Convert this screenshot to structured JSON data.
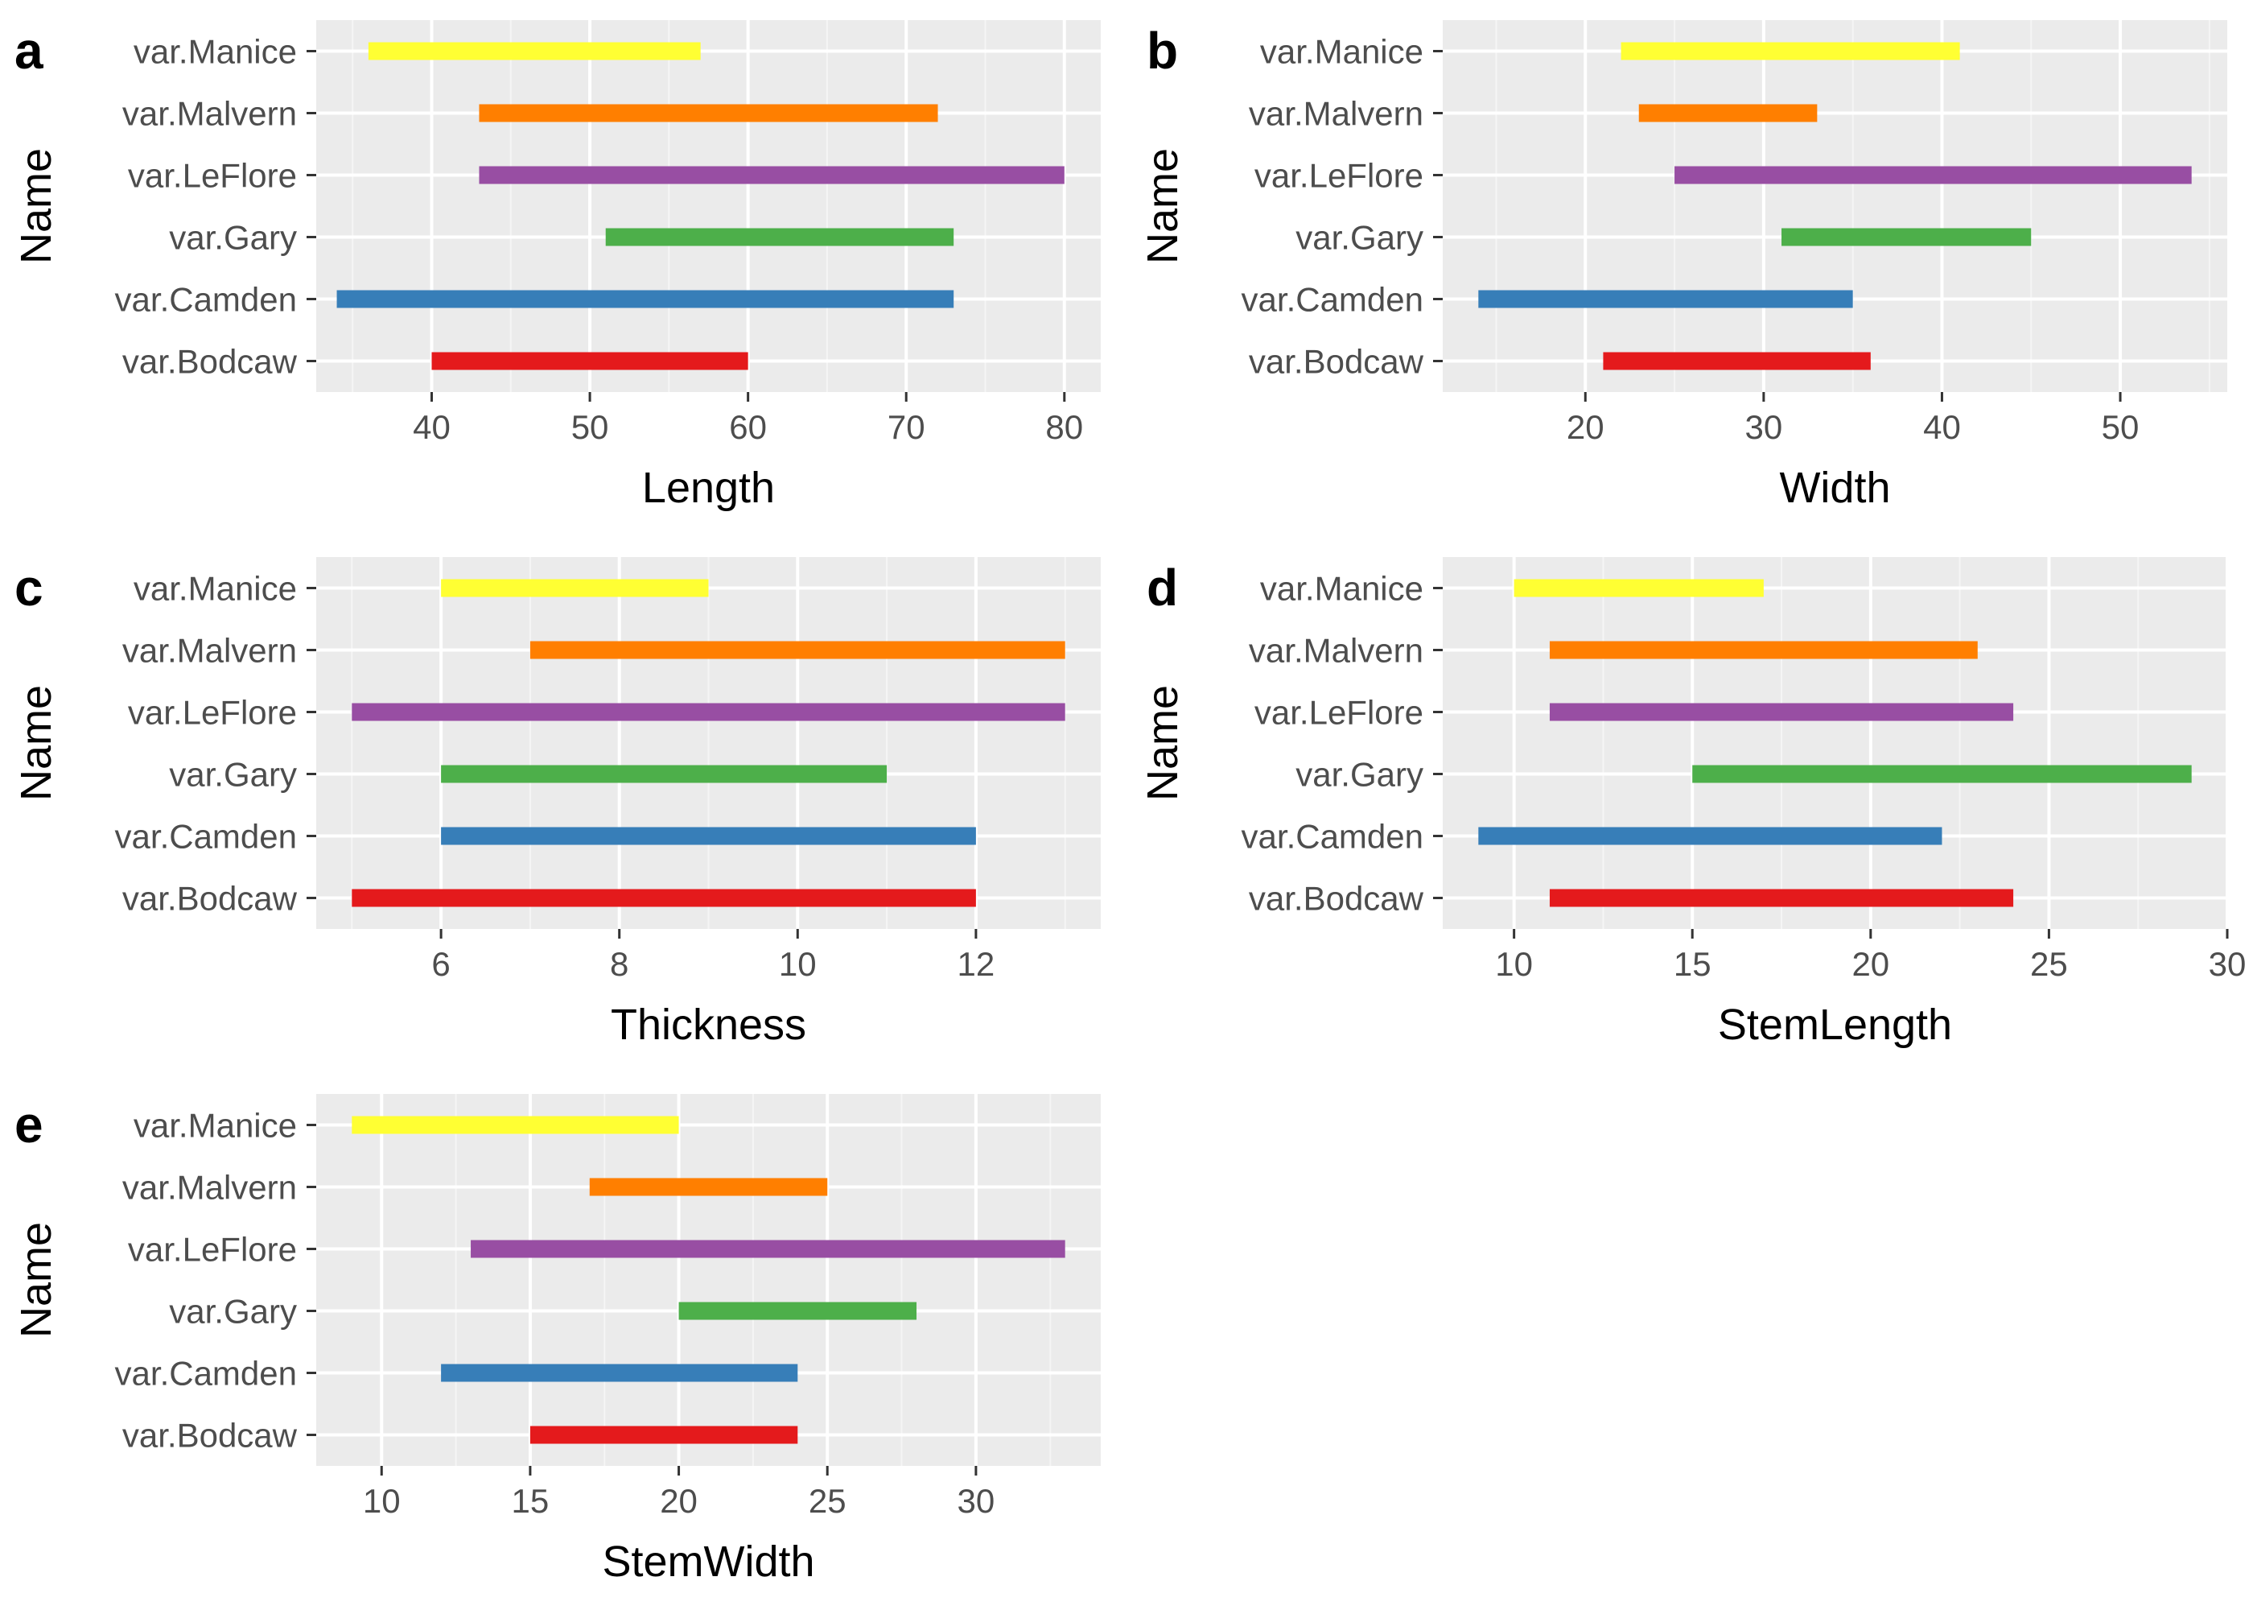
{
  "chart_data": [
    {
      "type": "bar",
      "panel_label": "a",
      "xlabel": "Length",
      "ylabel": "Name",
      "categories": [
        "var.Manice",
        "var.Malvern",
        "var.LeFlore",
        "var.Gary",
        "var.Camden",
        "var.Bodcaw"
      ],
      "ranges": [
        [
          36,
          57
        ],
        [
          43,
          72
        ],
        [
          43,
          80
        ],
        [
          51,
          73
        ],
        [
          34,
          73
        ],
        [
          40,
          60
        ]
      ],
      "colors": [
        "#ffff33",
        "#ff7f00",
        "#984ea3",
        "#4daf4a",
        "#377eb8",
        "#e41a1c"
      ],
      "xlim": [
        32.7,
        82.3
      ],
      "xticks": [
        40,
        50,
        60,
        70,
        80
      ],
      "xtick_labels": [
        "40",
        "50",
        "60",
        "70",
        "80"
      ],
      "grid": true
    },
    {
      "type": "bar",
      "panel_label": "b",
      "xlabel": "Width",
      "ylabel": "Name",
      "categories": [
        "var.Manice",
        "var.Malvern",
        "var.LeFlore",
        "var.Gary",
        "var.Camden",
        "var.Bodcaw"
      ],
      "ranges": [
        [
          22,
          41
        ],
        [
          23,
          33
        ],
        [
          25,
          54
        ],
        [
          31,
          45
        ],
        [
          14,
          35
        ],
        [
          21,
          36
        ]
      ],
      "colors": [
        "#ffff33",
        "#ff7f00",
        "#984ea3",
        "#4daf4a",
        "#377eb8",
        "#e41a1c"
      ],
      "xlim": [
        12.0,
        56.0
      ],
      "xticks": [
        20,
        30,
        40,
        50
      ],
      "xtick_labels": [
        "20",
        "30",
        "40",
        "50"
      ],
      "grid": true
    },
    {
      "type": "bar",
      "panel_label": "c",
      "xlabel": "Thickness",
      "ylabel": "Name",
      "categories": [
        "var.Manice",
        "var.Malvern",
        "var.LeFlore",
        "var.Gary",
        "var.Camden",
        "var.Bodcaw"
      ],
      "ranges": [
        [
          6,
          9
        ],
        [
          7,
          13
        ],
        [
          5,
          13
        ],
        [
          6,
          11
        ],
        [
          6,
          12
        ],
        [
          5,
          12
        ]
      ],
      "colors": [
        "#ffff33",
        "#ff7f00",
        "#984ea3",
        "#4daf4a",
        "#377eb8",
        "#e41a1c"
      ],
      "xlim": [
        4.6,
        13.4
      ],
      "xticks": [
        6,
        8,
        10,
        12
      ],
      "xtick_labels": [
        "6",
        "8",
        "10",
        "12"
      ],
      "grid": true
    },
    {
      "type": "bar",
      "panel_label": "d",
      "xlabel": "StemLength",
      "ylabel": "Name",
      "categories": [
        "var.Manice",
        "var.Malvern",
        "var.LeFlore",
        "var.Gary",
        "var.Camden",
        "var.Bodcaw"
      ],
      "ranges": [
        [
          10,
          17
        ],
        [
          11,
          23
        ],
        [
          11,
          24
        ],
        [
          15,
          29
        ],
        [
          9,
          22
        ],
        [
          11,
          24
        ]
      ],
      "colors": [
        "#ffff33",
        "#ff7f00",
        "#984ea3",
        "#4daf4a",
        "#377eb8",
        "#e41a1c"
      ],
      "xlim": [
        8.0,
        30.0
      ],
      "xticks": [
        10,
        15,
        20,
        25,
        30
      ],
      "xtick_labels": [
        "10",
        "15",
        "20",
        "25",
        "30"
      ],
      "grid": true
    },
    {
      "type": "bar",
      "panel_label": "e",
      "xlabel": "StemWidth",
      "ylabel": "Name",
      "categories": [
        "var.Manice",
        "var.Malvern",
        "var.LeFlore",
        "var.Gary",
        "var.Camden",
        "var.Bodcaw"
      ],
      "ranges": [
        [
          9,
          20
        ],
        [
          17,
          25
        ],
        [
          13,
          33
        ],
        [
          20,
          28
        ],
        [
          12,
          24
        ],
        [
          15,
          24
        ]
      ],
      "colors": [
        "#ffff33",
        "#ff7f00",
        "#984ea3",
        "#4daf4a",
        "#377eb8",
        "#e41a1c"
      ],
      "xlim": [
        7.8,
        34.2
      ],
      "xticks": [
        10,
        15,
        20,
        25,
        30
      ],
      "xtick_labels": [
        "10",
        "15",
        "20",
        "25",
        "30"
      ],
      "grid": true
    }
  ]
}
